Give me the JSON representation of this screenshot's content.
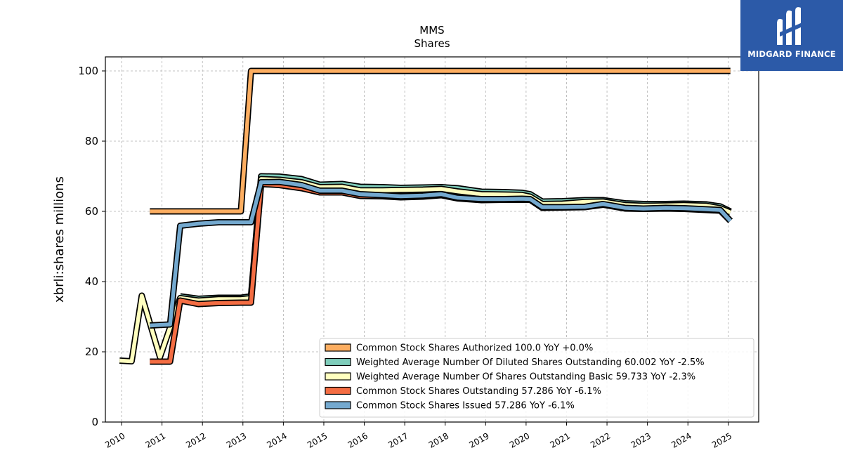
{
  "chart_data": {
    "type": "line",
    "title": "MMS",
    "subtitle": "Shares",
    "ylabel": "xbrli:shares millions",
    "xlabel": "",
    "xlim": [
      2009.6,
      2025.75
    ],
    "ylim": [
      0,
      104
    ],
    "yticks": [
      0,
      20,
      40,
      60,
      80,
      100
    ],
    "ytick_labels": [
      "0",
      "20",
      "40",
      "60",
      "80",
      "100"
    ],
    "xticks": [
      2010,
      2011,
      2012,
      2013,
      2014,
      2015,
      2016,
      2017,
      2018,
      2019,
      2020,
      2021,
      2022,
      2023,
      2024,
      2025
    ],
    "xtick_labels": [
      "2010",
      "2011",
      "2012",
      "2013",
      "2014",
      "2015",
      "2016",
      "2017",
      "2018",
      "2019",
      "2020",
      "2021",
      "2022",
      "2023",
      "2024",
      "2025"
    ],
    "grid": true,
    "legend_position": "lower-right",
    "series": [
      {
        "name": "Common Stock Shares Authorized",
        "legend": "Common Stock Shares Authorized  100.0 YoY +0.0%",
        "color": "#fdae61",
        "points": [
          [
            2010.7,
            60
          ],
          [
            2012.95,
            60
          ],
          [
            2013.2,
            100
          ],
          [
            2025.05,
            100
          ]
        ]
      },
      {
        "name": "Weighted Average Number Of Diluted Shares Outstanding",
        "legend": "Weighted Average Number Of Diluted Shares Outstanding  60.002 YoY -2.5%",
        "color": "#7fcdbb",
        "points": [
          [
            2011.45,
            35.8
          ],
          [
            2011.9,
            35.1
          ],
          [
            2012.4,
            35.4
          ],
          [
            2012.95,
            35.4
          ],
          [
            2013.2,
            35.8
          ],
          [
            2013.45,
            70
          ],
          [
            2013.9,
            69.9
          ],
          [
            2014.45,
            69.2
          ],
          [
            2014.9,
            67.6
          ],
          [
            2015.45,
            67.8
          ],
          [
            2015.9,
            67.0
          ],
          [
            2016.45,
            66.9
          ],
          [
            2016.9,
            66.7
          ],
          [
            2017.45,
            66.8
          ],
          [
            2017.9,
            66.9
          ],
          [
            2018.3,
            66.6
          ],
          [
            2018.9,
            65.6
          ],
          [
            2019.45,
            65.5
          ],
          [
            2019.9,
            65.3
          ],
          [
            2020.1,
            64.9
          ],
          [
            2020.4,
            62.8
          ],
          [
            2020.9,
            62.9
          ],
          [
            2021.45,
            63.2
          ],
          [
            2021.9,
            63.2
          ],
          [
            2022.45,
            62.3
          ],
          [
            2022.9,
            62.1
          ],
          [
            2023.45,
            62.1
          ],
          [
            2023.9,
            62.2
          ],
          [
            2024.45,
            62.0
          ],
          [
            2024.8,
            61.4
          ],
          [
            2025.05,
            60.0
          ]
        ]
      },
      {
        "name": "Weighted Average Number Of Shares Outstanding Basic",
        "legend": "Weighted Average Number Of Shares Outstanding Basic  59.733 YoY -2.3%",
        "color": "#ffffbf",
        "points": [
          [
            2009.95,
            17.5
          ],
          [
            2010.25,
            17.3
          ],
          [
            2010.5,
            36
          ],
          [
            2010.95,
            18.5
          ],
          [
            2011.45,
            35.3
          ],
          [
            2011.9,
            34.6
          ],
          [
            2012.4,
            35.0
          ],
          [
            2012.95,
            35.0
          ],
          [
            2013.2,
            35.3
          ],
          [
            2013.45,
            69.2
          ],
          [
            2013.9,
            69.0
          ],
          [
            2014.45,
            68.3
          ],
          [
            2014.9,
            66.9
          ],
          [
            2015.45,
            67.0
          ],
          [
            2015.9,
            66.0
          ],
          [
            2016.45,
            66.0
          ],
          [
            2016.9,
            66.1
          ],
          [
            2017.45,
            66.2
          ],
          [
            2017.9,
            66.4
          ],
          [
            2018.3,
            65.7
          ],
          [
            2018.9,
            64.9
          ],
          [
            2019.45,
            64.8
          ],
          [
            2019.9,
            64.7
          ],
          [
            2020.1,
            64.2
          ],
          [
            2020.4,
            62.1
          ],
          [
            2020.9,
            62.2
          ],
          [
            2021.45,
            62.7
          ],
          [
            2021.9,
            62.8
          ],
          [
            2022.45,
            61.8
          ],
          [
            2022.9,
            61.6
          ],
          [
            2023.45,
            61.7
          ],
          [
            2023.9,
            61.8
          ],
          [
            2024.45,
            61.6
          ],
          [
            2024.8,
            60.9
          ],
          [
            2025.05,
            59.7
          ]
        ]
      },
      {
        "name": "Common Stock Shares Outstanding",
        "legend": "Common Stock Shares Outstanding  57.286 YoY -6.1%",
        "color": "#f46d43",
        "points": [
          [
            2010.7,
            17.2
          ],
          [
            2011.2,
            17.2
          ],
          [
            2011.45,
            34.6
          ],
          [
            2011.9,
            33.6
          ],
          [
            2012.4,
            33.9
          ],
          [
            2012.95,
            34.0
          ],
          [
            2013.2,
            34.0
          ],
          [
            2013.45,
            67.8
          ],
          [
            2013.9,
            67.5
          ],
          [
            2014.45,
            66.6
          ],
          [
            2014.9,
            65.4
          ],
          [
            2015.45,
            65.4
          ],
          [
            2015.9,
            64.4
          ],
          [
            2016.45,
            64.3
          ],
          [
            2016.9,
            64.0
          ],
          [
            2017.45,
            64.2
          ],
          [
            2017.9,
            64.6
          ],
          [
            2018.3,
            63.7
          ],
          [
            2018.9,
            63.2
          ],
          [
            2019.45,
            63.3
          ],
          [
            2019.9,
            63.3
          ],
          [
            2020.1,
            63.3
          ],
          [
            2020.4,
            61.0
          ],
          [
            2020.9,
            61.1
          ],
          [
            2021.45,
            61.2
          ],
          [
            2021.9,
            61.9
          ],
          [
            2022.45,
            60.8
          ],
          [
            2022.9,
            60.7
          ],
          [
            2023.45,
            60.8
          ],
          [
            2023.9,
            60.7
          ],
          [
            2024.45,
            60.4
          ],
          [
            2024.8,
            60.2
          ],
          [
            2025.05,
            57.3
          ]
        ]
      },
      {
        "name": "Common Stock Shares Issued",
        "legend": "Common Stock Shares Issued  57.286 YoY -6.1%",
        "color": "#74a9cf",
        "points": [
          [
            2010.7,
            27.5
          ],
          [
            2011.2,
            27.8
          ],
          [
            2011.45,
            55.9
          ],
          [
            2011.9,
            56.5
          ],
          [
            2012.4,
            56.9
          ],
          [
            2012.95,
            56.9
          ],
          [
            2013.2,
            56.9
          ],
          [
            2013.45,
            68.3
          ],
          [
            2013.9,
            68.4
          ],
          [
            2014.45,
            67.5
          ],
          [
            2014.9,
            65.9
          ],
          [
            2015.45,
            65.9
          ],
          [
            2015.9,
            64.9
          ],
          [
            2016.45,
            64.6
          ],
          [
            2016.9,
            64.3
          ],
          [
            2017.45,
            64.5
          ],
          [
            2017.9,
            64.9
          ],
          [
            2018.3,
            63.9
          ],
          [
            2018.9,
            63.5
          ],
          [
            2019.45,
            63.5
          ],
          [
            2019.9,
            63.6
          ],
          [
            2020.1,
            63.5
          ],
          [
            2020.4,
            61.2
          ],
          [
            2020.9,
            61.2
          ],
          [
            2021.45,
            61.3
          ],
          [
            2021.9,
            62.1
          ],
          [
            2022.45,
            61.0
          ],
          [
            2022.9,
            60.8
          ],
          [
            2023.45,
            61.0
          ],
          [
            2023.9,
            60.9
          ],
          [
            2024.45,
            60.6
          ],
          [
            2024.8,
            60.4
          ],
          [
            2025.05,
            57.3
          ]
        ]
      }
    ]
  },
  "watermark": {
    "brand_text": "MIDGARD FINANCE",
    "color": "#2c5aa8",
    "icon": "midgard-logo-icon"
  }
}
